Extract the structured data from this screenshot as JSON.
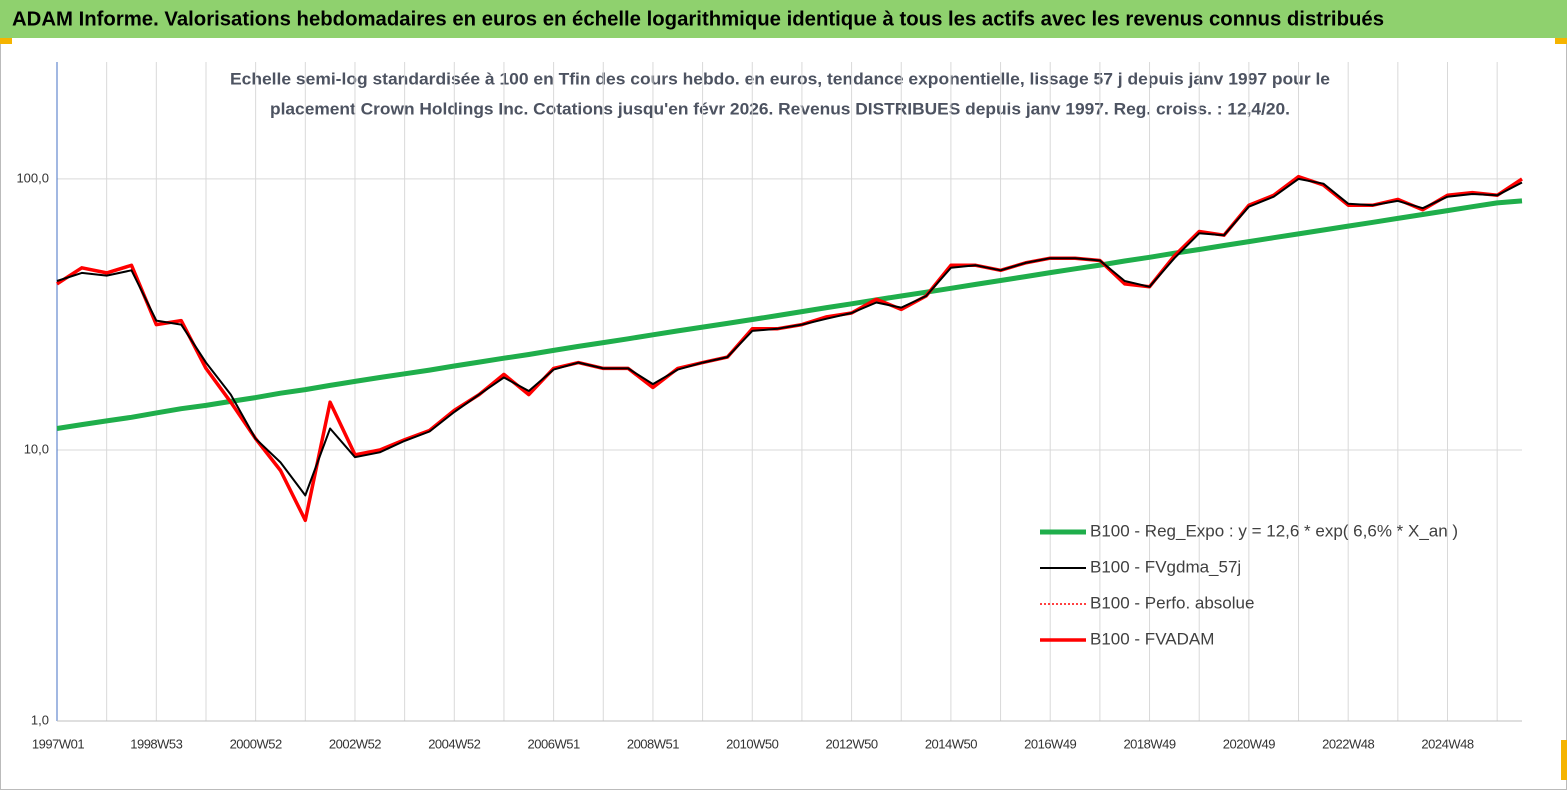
{
  "chart_data": {
    "type": "line",
    "title": "ADAM Informe. Valorisations hebdomadaires en euros en échelle logarithmique identique à tous les actifs avec les revenus connus distribués",
    "subtitle": [
      "Echelle semi-log standardisée à 100 en Tfin des cours hebdo. en euros, tendance exponentielle, lissage 57 j depuis janv 1997 pour le",
      "placement Crown Holdings Inc. Cotations jusqu'en févr 2026.  Revenus DISTRIBUES depuis janv 1997. Reg. croiss. : 12,4/20."
    ],
    "log_scale": true,
    "grid": true,
    "legend": "lower right",
    "ylim": [
      1,
      270
    ],
    "yticks": [
      {
        "value": 1,
        "label": "1,0"
      },
      {
        "value": 10,
        "label": "10,0"
      },
      {
        "value": 100,
        "label": "100,0"
      }
    ],
    "categories": [
      "1997W01",
      null,
      null,
      null,
      "1998W53",
      null,
      null,
      null,
      "2000W52",
      null,
      null,
      null,
      "2002W52",
      null,
      null,
      null,
      "2004W52",
      null,
      null,
      null,
      "2006W51",
      null,
      null,
      null,
      "2008W51",
      null,
      null,
      null,
      "2010W50",
      null,
      null,
      null,
      "2012W50",
      null,
      null,
      null,
      "2014W50",
      null,
      null,
      null,
      "2016W49",
      null,
      null,
      null,
      "2018W49",
      null,
      null,
      null,
      "2020W49",
      null,
      null,
      null,
      "2022W48",
      null,
      null,
      null,
      "2024W48",
      null,
      null,
      null
    ],
    "series": [
      {
        "name": "B100 - Reg_Expo : y = 12,6 * exp( 6,6% *  X_an )",
        "color": "#1fae4b",
        "line_width": 5,
        "dashed": false,
        "values": [
          12.0,
          12.4,
          12.8,
          13.2,
          13.7,
          14.2,
          14.6,
          15.1,
          15.6,
          16.2,
          16.7,
          17.3,
          17.9,
          18.5,
          19.1,
          19.7,
          20.4,
          21.1,
          21.8,
          22.5,
          23.3,
          24.1,
          24.9,
          25.7,
          26.6,
          27.5,
          28.4,
          29.3,
          30.3,
          31.3,
          32.4,
          33.5,
          34.6,
          35.8,
          37.0,
          38.2,
          39.5,
          40.8,
          42.2,
          43.6,
          45.1,
          46.6,
          48.1,
          49.8,
          51.4,
          53.2,
          54.9,
          56.8,
          58.7,
          60.7,
          62.7,
          64.8,
          67.0,
          69.2,
          71.5,
          73.9,
          76.4,
          79.0,
          81.6,
          83.0
        ]
      },
      {
        "name": "B100 - FVgdma_57j",
        "color": "#000000",
        "line_width": 2,
        "dashed": false,
        "values": [
          42,
          45,
          44,
          46,
          30,
          29,
          21,
          16,
          11,
          9,
          6.8,
          12,
          9.4,
          9.8,
          10.8,
          11.7,
          13.8,
          16,
          18.5,
          16.5,
          19.8,
          21,
          20,
          20,
          17.5,
          19.8,
          21,
          22,
          27.5,
          28,
          29,
          30.5,
          32,
          35,
          33.5,
          37,
          47,
          48,
          46,
          49,
          51,
          51,
          50,
          42,
          40,
          51,
          63,
          62,
          79,
          86,
          100,
          96,
          81,
          80,
          83,
          78,
          86,
          88,
          87,
          97
        ]
      },
      {
        "name": "B100 - Perfo. absolue",
        "color": "#ff0000",
        "line_width": 1.5,
        "dashed": true,
        "values": [
          41,
          47,
          45,
          48,
          29,
          30,
          20,
          15,
          11,
          8.4,
          5.5,
          15,
          9.6,
          10,
          10.9,
          11.8,
          14,
          16,
          19,
          16,
          20,
          21,
          20,
          20,
          17,
          20,
          21,
          22,
          28,
          28,
          29,
          31,
          32,
          36,
          33,
          37,
          48,
          48,
          46,
          49,
          51,
          51,
          50,
          41,
          40,
          52,
          64,
          62,
          80,
          87,
          102,
          95,
          80,
          80,
          84,
          77,
          87,
          89,
          87,
          100
        ]
      },
      {
        "name": "B100 - FVADAM",
        "color": "#ff0000",
        "line_width": 3.5,
        "dashed": false,
        "values": [
          41,
          47,
          45,
          48,
          29,
          30,
          20,
          15,
          11,
          8.4,
          5.5,
          15,
          9.6,
          10,
          10.9,
          11.8,
          14,
          16,
          19,
          16,
          20,
          21,
          20,
          20,
          17,
          20,
          21,
          22,
          28,
          28,
          29,
          31,
          32,
          36,
          33,
          37,
          48,
          48,
          46,
          49,
          51,
          51,
          50,
          41,
          40,
          52,
          64,
          62,
          80,
          87,
          102,
          95,
          80,
          80,
          84,
          77,
          87,
          89,
          87,
          100
        ]
      }
    ]
  }
}
